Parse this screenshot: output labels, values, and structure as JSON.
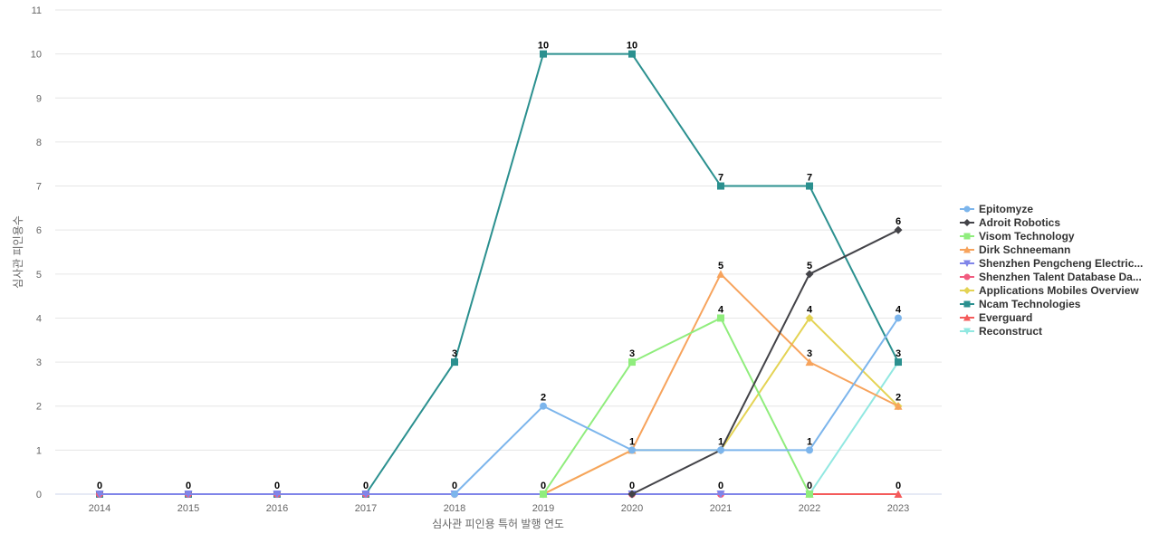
{
  "chart_data": {
    "type": "line",
    "title": "",
    "xlabel": "심사관 피인용 특허 발행 연도",
    "ylabel": "심사관 피인용수",
    "ylim": [
      0,
      11
    ],
    "y_ticks": [
      0,
      1,
      2,
      3,
      4,
      5,
      6,
      7,
      8,
      9,
      10,
      11
    ],
    "grid": true,
    "legend_position": "right",
    "categories": [
      "2014",
      "2015",
      "2016",
      "2017",
      "2018",
      "2019",
      "2020",
      "2021",
      "2022",
      "2023"
    ],
    "series": [
      {
        "name": "Epitomyze",
        "color": "#7cb5ec",
        "marker": "circle",
        "values": [
          null,
          null,
          null,
          null,
          0,
          2,
          1,
          1,
          1,
          4
        ]
      },
      {
        "name": "Adroit Robotics",
        "color": "#434348",
        "marker": "diamond",
        "values": [
          null,
          null,
          null,
          null,
          null,
          null,
          0,
          1,
          5,
          6
        ]
      },
      {
        "name": "Visom Technology",
        "color": "#90ed7d",
        "marker": "square",
        "values": [
          null,
          null,
          null,
          null,
          null,
          0,
          3,
          4,
          0,
          null
        ]
      },
      {
        "name": "Dirk Schneemann",
        "color": "#f7a35c",
        "marker": "triangle",
        "values": [
          null,
          null,
          null,
          null,
          null,
          0,
          1,
          5,
          3,
          2
        ]
      },
      {
        "name": "Shenzhen Pengcheng Electric...",
        "color": "#8085e9",
        "marker": "triangle-down",
        "values": [
          0,
          0,
          0,
          0,
          0,
          0,
          0,
          0,
          0,
          null
        ]
      },
      {
        "name": "Shenzhen Talent Database Da...",
        "color": "#f15c80",
        "marker": "circle",
        "values": [
          0,
          0,
          0,
          0,
          0,
          0,
          0,
          0,
          0,
          null
        ]
      },
      {
        "name": "Applications Mobiles Overview",
        "color": "#e4d354",
        "marker": "diamond",
        "values": [
          null,
          null,
          null,
          null,
          null,
          0,
          1,
          1,
          4,
          2
        ]
      },
      {
        "name": "Ncam Technologies",
        "color": "#2b908f",
        "marker": "square",
        "values": [
          0,
          0,
          0,
          0,
          3,
          10,
          10,
          7,
          7,
          3
        ]
      },
      {
        "name": "Everguard",
        "color": "#f45b5b",
        "marker": "triangle",
        "values": [
          null,
          null,
          null,
          null,
          null,
          null,
          null,
          null,
          0,
          0
        ]
      },
      {
        "name": "Reconstruct",
        "color": "#91e8e1",
        "marker": "triangle-down",
        "values": [
          null,
          null,
          null,
          null,
          null,
          null,
          null,
          null,
          0,
          3
        ]
      }
    ],
    "data_labels": [
      {
        "x": "2014",
        "y": 0,
        "text": "0"
      },
      {
        "x": "2015",
        "y": 0,
        "text": "0"
      },
      {
        "x": "2016",
        "y": 0,
        "text": "0"
      },
      {
        "x": "2017",
        "y": 0,
        "text": "0"
      },
      {
        "x": "2018",
        "y": 0,
        "text": "0"
      },
      {
        "x": "2018",
        "y": 3,
        "text": "3"
      },
      {
        "x": "2019",
        "y": 0,
        "text": "0"
      },
      {
        "x": "2019",
        "y": 2,
        "text": "2"
      },
      {
        "x": "2019",
        "y": 10,
        "text": "10"
      },
      {
        "x": "2020",
        "y": 0,
        "text": "0"
      },
      {
        "x": "2020",
        "y": 1,
        "text": "1"
      },
      {
        "x": "2020",
        "y": 3,
        "text": "3"
      },
      {
        "x": "2020",
        "y": 10,
        "text": "10"
      },
      {
        "x": "2021",
        "y": 0,
        "text": "0"
      },
      {
        "x": "2021",
        "y": 1,
        "text": "1"
      },
      {
        "x": "2021",
        "y": 4,
        "text": "4"
      },
      {
        "x": "2021",
        "y": 5,
        "text": "5"
      },
      {
        "x": "2021",
        "y": 7,
        "text": "7"
      },
      {
        "x": "2022",
        "y": 0,
        "text": "0"
      },
      {
        "x": "2022",
        "y": 1,
        "text": "1"
      },
      {
        "x": "2022",
        "y": 3,
        "text": "3"
      },
      {
        "x": "2022",
        "y": 4,
        "text": "4"
      },
      {
        "x": "2022",
        "y": 5,
        "text": "5"
      },
      {
        "x": "2022",
        "y": 7,
        "text": "7"
      },
      {
        "x": "2023",
        "y": 0,
        "text": "0"
      },
      {
        "x": "2023",
        "y": 2,
        "text": "2"
      },
      {
        "x": "2023",
        "y": 3,
        "text": "3"
      },
      {
        "x": "2023",
        "y": 4,
        "text": "4"
      },
      {
        "x": "2023",
        "y": 6,
        "text": "6"
      }
    ]
  }
}
